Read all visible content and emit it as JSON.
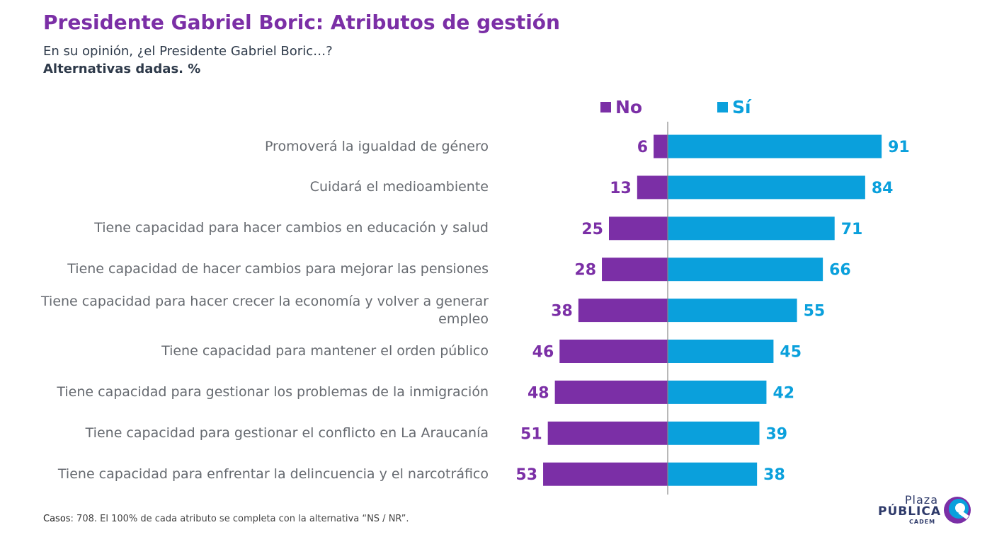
{
  "title": "Presidente Gabriel Boric: Atributos de gestión",
  "subtitle": "En su opinión, ¿el Presidente Gabriel Boric…?",
  "note": "Alternativas dadas. %",
  "colors": {
    "no": "#7b2fa6",
    "si": "#0aa0dc",
    "axis": "#888888"
  },
  "chart_data": {
    "type": "bar",
    "orientation": "horizontal-diverging",
    "categories": [
      "Promoverá la igualdad de género",
      "Cuidará el medioambiente",
      "Tiene capacidad para hacer cambios en educación y salud",
      "Tiene capacidad de hacer cambios para mejorar las pensiones",
      "Tiene capacidad para hacer crecer la economía y volver a generar empleo",
      "Tiene capacidad para mantener el orden público",
      "Tiene capacidad para gestionar los problemas de la inmigración",
      "Tiene capacidad para gestionar el conflicto en La Araucanía",
      "Tiene capacidad para enfrentar la delincuencia y el narcotráfico"
    ],
    "series": [
      {
        "name": "No",
        "values": [
          6,
          13,
          25,
          28,
          38,
          46,
          48,
          51,
          53
        ]
      },
      {
        "name": "Sí",
        "values": [
          91,
          84,
          71,
          66,
          55,
          45,
          42,
          39,
          38
        ]
      }
    ],
    "grid": false,
    "legend": "top"
  },
  "footer": {
    "casos_label": "Casos",
    "casos_text": ": 708. El 100% de cada atributo se completa con la alternativa “NS / NR”."
  },
  "logo": {
    "line1": "Plaza",
    "line2": "PÚBLICA",
    "line3": "CADEM"
  }
}
